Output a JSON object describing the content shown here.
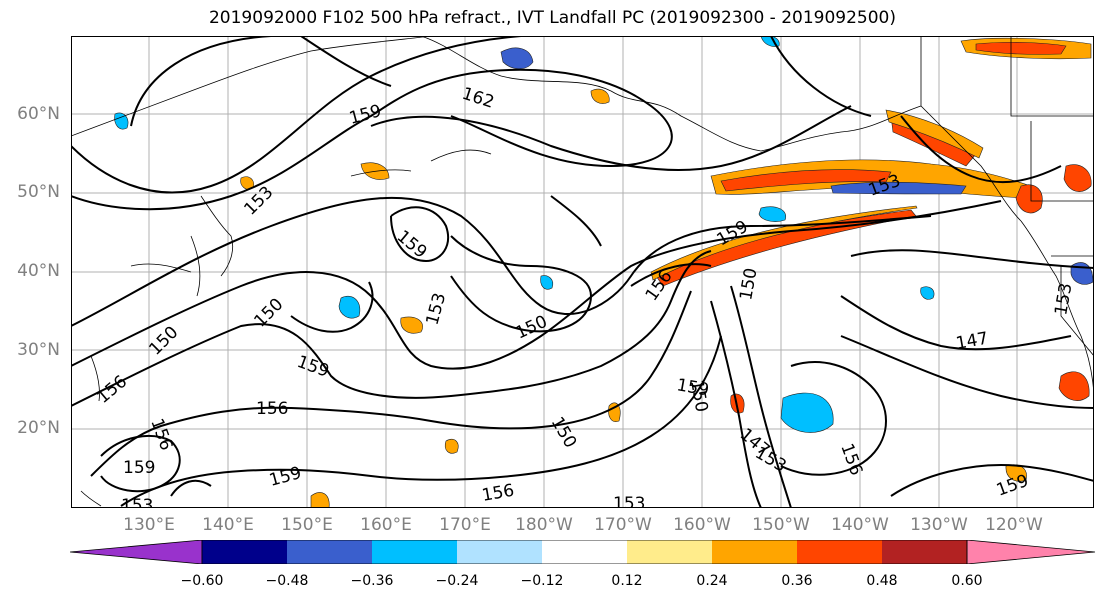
{
  "title": "2019092000 F102 500 hPa refract., IVT Landfall PC (2019092300 - 2019092500)",
  "latitude_labels": [
    "60°N",
    "50°N",
    "40°N",
    "30°N",
    "20°N"
  ],
  "longitude_labels": [
    "130°E",
    "140°E",
    "150°E",
    "160°E",
    "170°E",
    "180°W",
    "170°W",
    "160°W",
    "150°W",
    "140°W",
    "130°W",
    "120°W"
  ],
  "contour_labels": [
    "162",
    "159",
    "153",
    "159",
    "150",
    "150",
    "153",
    "150",
    "147",
    "156",
    "156",
    "159",
    "156",
    "150",
    "156",
    "159",
    "159",
    "150",
    "153",
    "159",
    "153",
    "147",
    "153",
    "156",
    "159",
    "153",
    "153",
    "150",
    "156",
    "159"
  ],
  "colorbar": {
    "tick_labels": [
      "−0.60",
      "−0.48",
      "−0.36",
      "−0.24",
      "−0.12",
      "0.12",
      "0.24",
      "0.36",
      "0.48",
      "0.60"
    ],
    "colors": [
      "#9932cc",
      "#00008b",
      "#3a5fcd",
      "#00bfff",
      "#b0e2ff",
      "#ffffff",
      "#ffec8b",
      "#ffa500",
      "#ff4500",
      "#b22222",
      "#ff82ab"
    ]
  }
}
